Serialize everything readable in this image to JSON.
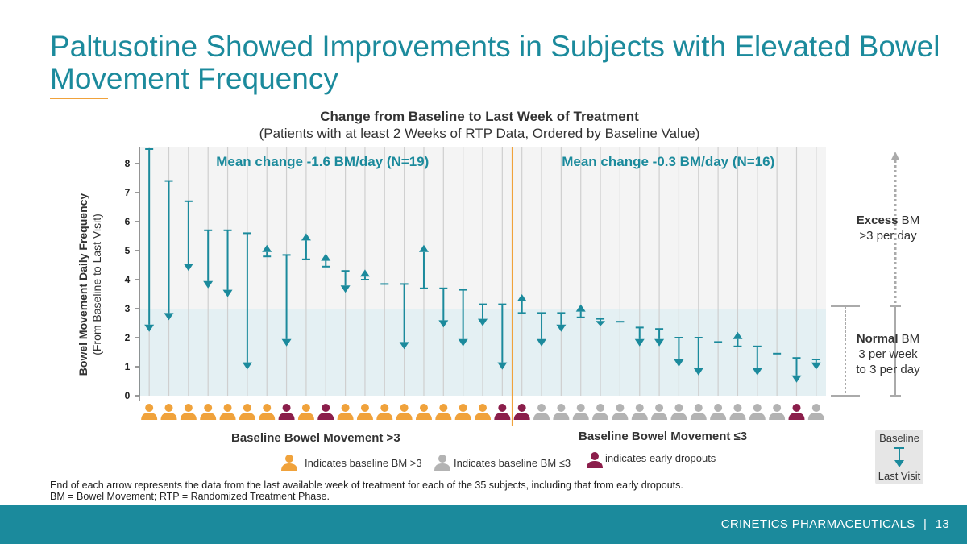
{
  "slide": {
    "title": "Paltusotine Showed Improvements in Subjects with Elevated Bowel Movement Frequency",
    "company": "CRINETICS PHARMACEUTICALS",
    "separator": "|",
    "page_number": "13"
  },
  "chart_data": {
    "type": "arrow",
    "title": "Change from Baseline to Last Week of Treatment",
    "subtitle": "(Patients with at least 2 Weeks of RTP Data, Ordered by Baseline Value)",
    "ylabel_main": "Bowel Movement Daily Frequency",
    "ylabel_sub": "(From Baseline to Last Visit)",
    "ylim": [
      0,
      8.5
    ],
    "yticks": [
      "0",
      "1",
      "2",
      "3",
      "4",
      "5",
      "6",
      "7",
      "8"
    ],
    "normal_upper": 3,
    "groups": [
      {
        "label": "Baseline Bowel Movement >3",
        "mean_label": "Mean change -1.6 BM/day (N=19)",
        "count": 19
      },
      {
        "label": "Baseline Bowel Movement ≤3",
        "mean_label": "Mean change -0.3 BM/day (N=16)",
        "count": 16
      }
    ],
    "subjects": [
      {
        "baseline": 8.5,
        "last": 2.2,
        "group": ">3",
        "dropout": false
      },
      {
        "baseline": 7.4,
        "last": 2.6,
        "group": ">3",
        "dropout": false
      },
      {
        "baseline": 6.7,
        "last": 4.3,
        "group": ">3",
        "dropout": false
      },
      {
        "baseline": 5.7,
        "last": 3.7,
        "group": ">3",
        "dropout": false
      },
      {
        "baseline": 5.7,
        "last": 3.4,
        "group": ">3",
        "dropout": false
      },
      {
        "baseline": 5.6,
        "last": 0.9,
        "group": ">3",
        "dropout": false
      },
      {
        "baseline": 4.8,
        "last": 5.2,
        "group": ">3",
        "dropout": false
      },
      {
        "baseline": 4.85,
        "last": 1.7,
        "group": ">3",
        "dropout": true
      },
      {
        "baseline": 4.7,
        "last": 5.6,
        "group": ">3",
        "dropout": false
      },
      {
        "baseline": 4.45,
        "last": 4.9,
        "group": ">3",
        "dropout": true
      },
      {
        "baseline": 4.3,
        "last": 3.55,
        "group": ">3",
        "dropout": false
      },
      {
        "baseline": 4.0,
        "last": 4.35,
        "group": ">3",
        "dropout": false
      },
      {
        "baseline": 3.85,
        "last": 3.85,
        "group": ">3",
        "dropout": false
      },
      {
        "baseline": 3.85,
        "last": 1.6,
        "group": ">3",
        "dropout": false
      },
      {
        "baseline": 3.7,
        "last": 5.2,
        "group": ">3",
        "dropout": false
      },
      {
        "baseline": 3.7,
        "last": 2.35,
        "group": ">3",
        "dropout": false
      },
      {
        "baseline": 3.65,
        "last": 1.7,
        "group": ">3",
        "dropout": false
      },
      {
        "baseline": 3.15,
        "last": 2.4,
        "group": ">3",
        "dropout": false
      },
      {
        "baseline": 3.15,
        "last": 0.9,
        "group": ">3",
        "dropout": true
      },
      {
        "baseline": 2.85,
        "last": 3.5,
        "group": "≤3",
        "dropout": true
      },
      {
        "baseline": 2.85,
        "last": 1.7,
        "group": "≤3",
        "dropout": false
      },
      {
        "baseline": 2.85,
        "last": 2.2,
        "group": "≤3",
        "dropout": false
      },
      {
        "baseline": 2.7,
        "last": 3.15,
        "group": "≤3",
        "dropout": false
      },
      {
        "baseline": 2.65,
        "last": 2.4,
        "group": "≤3",
        "dropout": false
      },
      {
        "baseline": 2.55,
        "last": 2.55,
        "group": "≤3",
        "dropout": false
      },
      {
        "baseline": 2.35,
        "last": 1.7,
        "group": "≤3",
        "dropout": false
      },
      {
        "baseline": 2.3,
        "last": 1.7,
        "group": "≤3",
        "dropout": false
      },
      {
        "baseline": 2.0,
        "last": 1.0,
        "group": "≤3",
        "dropout": false
      },
      {
        "baseline": 2.0,
        "last": 0.7,
        "group": "≤3",
        "dropout": false
      },
      {
        "baseline": 1.85,
        "last": 1.85,
        "group": "≤3",
        "dropout": false
      },
      {
        "baseline": 1.7,
        "last": 2.2,
        "group": "≤3",
        "dropout": false
      },
      {
        "baseline": 1.7,
        "last": 0.7,
        "group": "≤3",
        "dropout": false
      },
      {
        "baseline": 1.45,
        "last": 1.45,
        "group": "≤3",
        "dropout": false
      },
      {
        "baseline": 1.3,
        "last": 0.45,
        "group": "≤3",
        "dropout": true
      },
      {
        "baseline": 1.25,
        "last": 0.9,
        "group": "≤3",
        "dropout": false
      }
    ]
  },
  "legend": {
    "orange": "Indicates baseline BM >3",
    "gray": "Indicates baseline BM ≤3",
    "purple": "indicates early dropouts"
  },
  "side": {
    "excess_bold": "Excess",
    "excess_rest": " BM",
    "excess_line2": ">3 per day",
    "normal_bold": "Normal",
    "normal_rest": " BM",
    "normal_line2": "3 per week",
    "normal_line3": "to 3 per day",
    "key_baseline": "Baseline",
    "key_last": "Last Visit"
  },
  "footnotes": [
    "End of each arrow represents the data from the last available week of treatment for each of the 35 subjects, including that from early dropouts.",
    "BM = Bowel Movement; RTP = Randomized Treatment Phase."
  ],
  "colors": {
    "teal": "#1b8a9c",
    "orange": "#f0a23b",
    "gray": "#b3b3b3",
    "purple": "#8b1e4b",
    "normal_band": "#e4f0f3",
    "plot_bg": "#f4f4f4"
  }
}
